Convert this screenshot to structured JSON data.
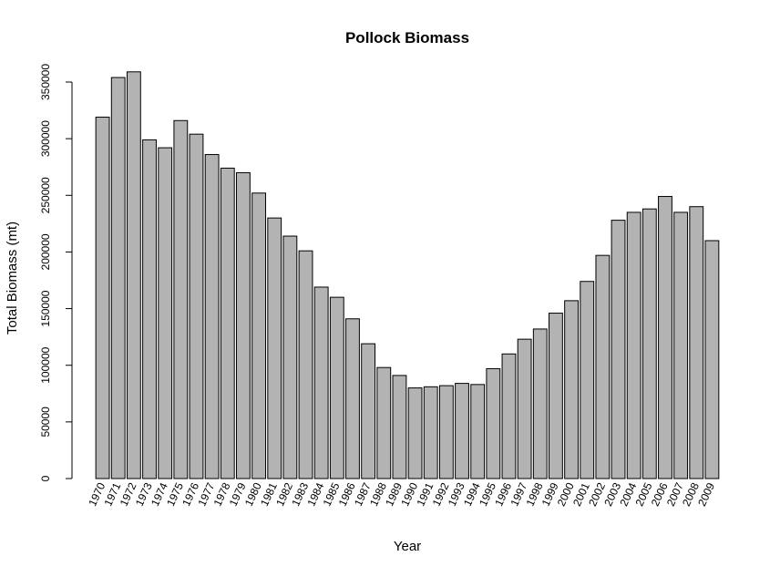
{
  "chart_data": {
    "type": "bar",
    "title": "Pollock Biomass",
    "xlabel": "Year",
    "ylabel": "Total Biomass (mt)",
    "categories": [
      "1970",
      "1971",
      "1972",
      "1973",
      "1974",
      "1975",
      "1976",
      "1977",
      "1978",
      "1979",
      "1980",
      "1981",
      "1982",
      "1983",
      "1984",
      "1985",
      "1986",
      "1987",
      "1988",
      "1989",
      "1990",
      "1991",
      "1992",
      "1993",
      "1994",
      "1995",
      "1996",
      "1997",
      "1998",
      "1999",
      "2000",
      "2001",
      "2002",
      "2003",
      "2004",
      "2005",
      "2006",
      "2007",
      "2008",
      "2009"
    ],
    "values": [
      319000,
      354000,
      359000,
      299000,
      292000,
      316000,
      304000,
      286000,
      274000,
      270000,
      252000,
      230000,
      214000,
      201000,
      169000,
      160000,
      141000,
      119000,
      98000,
      91000,
      80000,
      81000,
      82000,
      84000,
      83000,
      97000,
      110000,
      123000,
      132000,
      146000,
      157000,
      174000,
      197000,
      228000,
      235000,
      238000,
      249000,
      235000,
      240000,
      210000
    ],
    "yticks": [
      0,
      50000,
      100000,
      150000,
      200000,
      250000,
      300000,
      350000
    ],
    "ylim": [
      0,
      360000
    ],
    "grid": false,
    "legend": "none",
    "bar_color": "#b3b3b3",
    "bar_border_color": "#000000"
  }
}
